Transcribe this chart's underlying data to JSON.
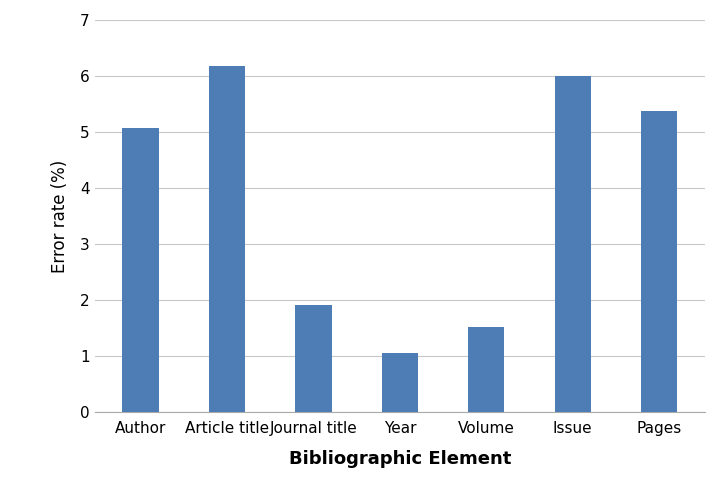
{
  "categories": [
    "Author",
    "Article title",
    "Journal title",
    "Year",
    "Volume",
    "Issue",
    "Pages"
  ],
  "values": [
    5.08,
    6.18,
    1.92,
    1.06,
    1.53,
    6.0,
    5.37
  ],
  "bar_color": "#4e7db5",
  "xlabel": "Bibliographic Element",
  "ylabel": "Error rate (%)",
  "ylim": [
    0,
    7
  ],
  "yticks": [
    0,
    1,
    2,
    3,
    4,
    5,
    6,
    7
  ],
  "background_color": "#ffffff",
  "grid_color": "#c8c8c8",
  "xlabel_fontsize": 13,
  "ylabel_fontsize": 12,
  "tick_fontsize": 11,
  "xlabel_fontweight": "bold",
  "bar_width": 0.42
}
